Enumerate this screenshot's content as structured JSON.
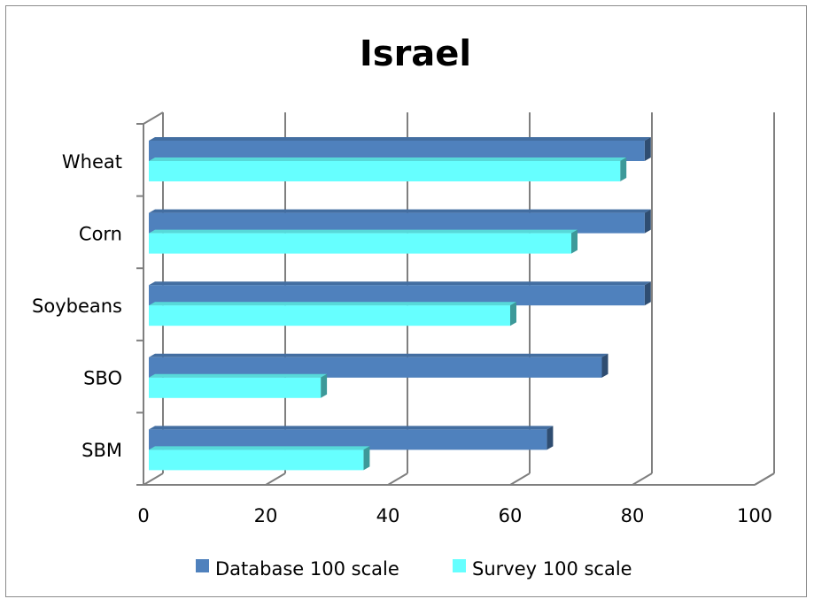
{
  "chart_data": {
    "type": "bar",
    "orientation": "horizontal",
    "title": "Israel",
    "categories": [
      "Wheat",
      "Corn",
      "Soybeans",
      "SBO",
      "SBM"
    ],
    "series": [
      {
        "name": "Database 100 scale",
        "values": [
          82,
          82,
          82,
          75,
          66
        ],
        "color": "#4f81bd"
      },
      {
        "name": "Survey 100 scale",
        "values": [
          78,
          70,
          60,
          29,
          36
        ],
        "color": "#66ffff"
      }
    ],
    "xlim": [
      0,
      100
    ],
    "xticks": [
      "0",
      "20",
      "40",
      "60",
      "80",
      "100"
    ],
    "grid": true,
    "legend": "bottom",
    "style": "3d"
  }
}
